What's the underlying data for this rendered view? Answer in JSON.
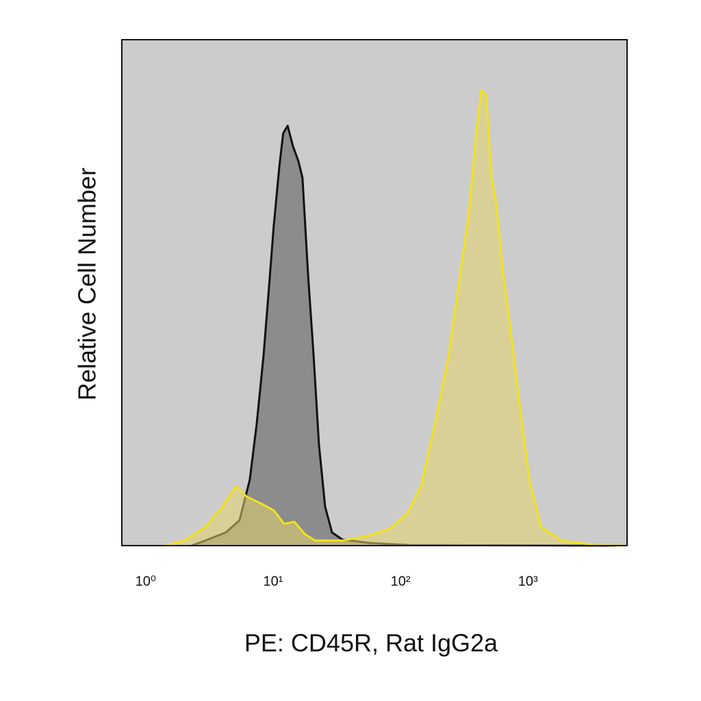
{
  "chart_data": {
    "type": "histogram-overlay",
    "x_label": "PE: CD45R, Rat IgG2a",
    "y_label": "Relative Cell Number",
    "xscale": "log",
    "xlim": [
      0.65,
      6000
    ],
    "ylim": [
      0,
      100
    ],
    "xticks": [
      {
        "value": 1,
        "label": "10⁰"
      },
      {
        "value": 10,
        "label": "10¹"
      },
      {
        "value": 100,
        "label": "10²"
      },
      {
        "value": 1000,
        "label": "10³"
      }
    ],
    "background": "#cccccc",
    "series": [
      {
        "color": "#111111",
        "fill": "#8c8c8c",
        "x": [
          2.29,
          2.94,
          4.26,
          5.45,
          6.56,
          7.43,
          8.41,
          9.28,
          10.1,
          11.2,
          12.0,
          13.0,
          14.3,
          15.8,
          17.0,
          18.8,
          20.8,
          22.9,
          25.6,
          29.0,
          34.9,
          57.3,
          120,
          4940
        ],
        "values": [
          0,
          1,
          2.6,
          5,
          13,
          24,
          37.5,
          51,
          63,
          75,
          81.5,
          83,
          79,
          76,
          72.7,
          53.7,
          37.5,
          20,
          7.7,
          2.6,
          1.2,
          0.5,
          0.1,
          0
        ]
      },
      {
        "color": "#f2e21c",
        "fill": "rgba(228,212,110,0.55)",
        "x": [
          1.4,
          2.02,
          2.94,
          4.0,
          5.13,
          6.17,
          7.91,
          10.1,
          12.2,
          14.7,
          17.7,
          21.3,
          34.9,
          57.3,
          83.0,
          113,
          145,
          186,
          238,
          294,
          345,
          390,
          430,
          470,
          519,
          566,
          640,
          752,
          872,
          1026,
          1265,
          1832,
          3406,
          5590
        ],
        "values": [
          0,
          1,
          3.7,
          7.7,
          11.8,
          9.7,
          8.4,
          7,
          4.3,
          4.7,
          2.3,
          1,
          1,
          2,
          3.4,
          6.4,
          11.8,
          24,
          37.5,
          53.7,
          66,
          80.8,
          90,
          89,
          72.7,
          67.3,
          53.7,
          40,
          26.7,
          13,
          3.7,
          1,
          0.1,
          0
        ]
      }
    ]
  }
}
